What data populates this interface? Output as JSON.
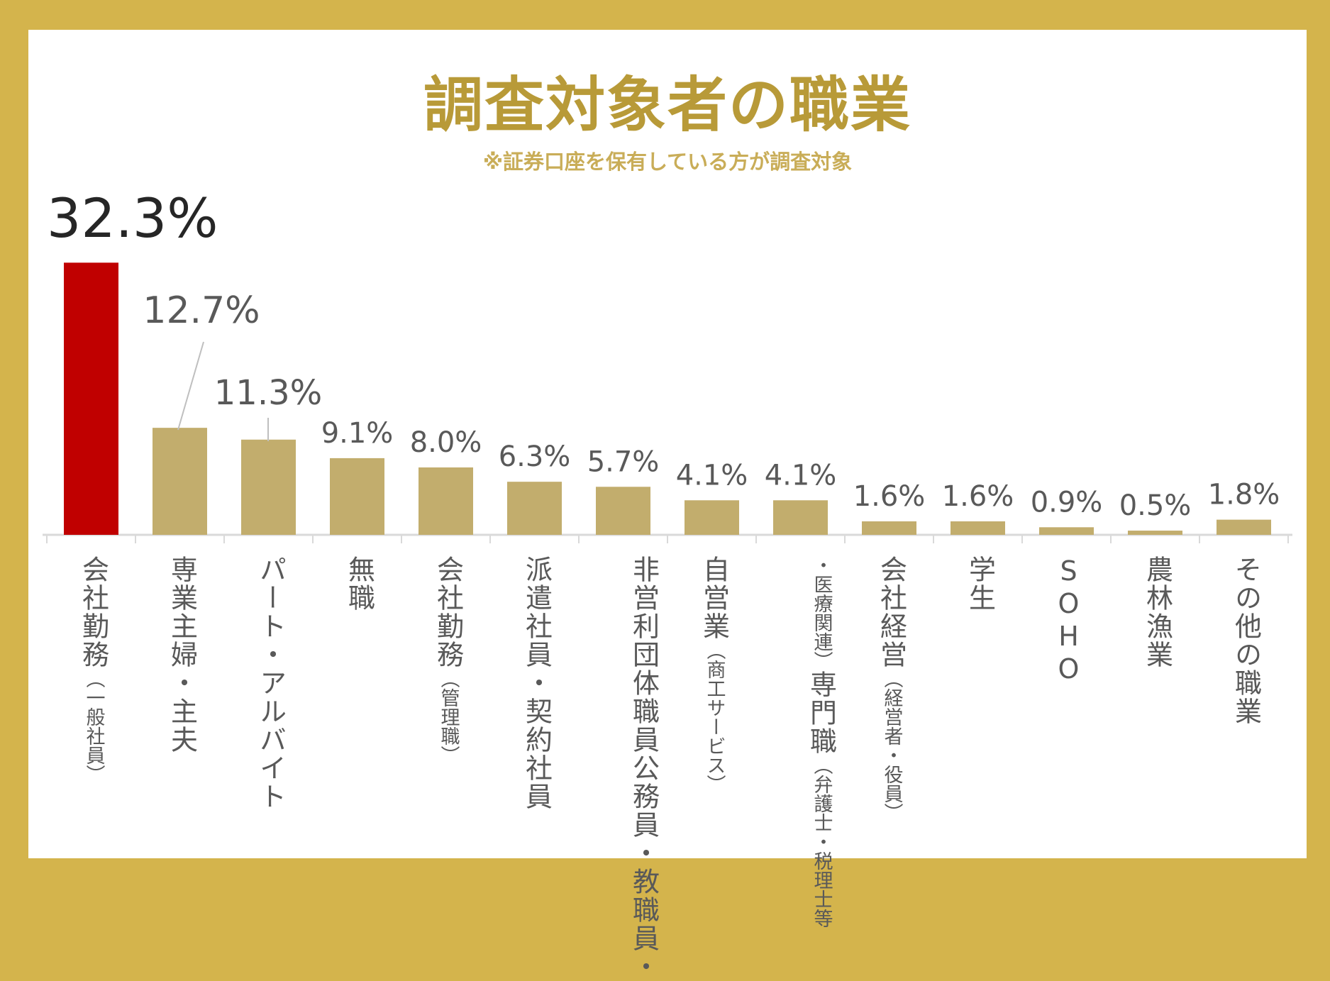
{
  "title": "調査対象者の職業",
  "subtitle": "※証券口座を保有している方が調査対象",
  "colors": {
    "highlight": "#c00000",
    "bar": "#c2ad6d",
    "frame": "#d4b44c"
  },
  "chart_data": {
    "type": "bar",
    "title": "調査対象者の職業",
    "subtitle": "※証券口座を保有している方が調査対象",
    "unit": "%",
    "categories": [
      "会社勤務（一般社員）",
      "専業主婦・主夫",
      "パート・アルバイト",
      "無職",
      "会社勤務（管理職）",
      "派遣社員・契約社員",
      "公務員・教職員・非営利団体職員",
      "自営業（商工サービス）",
      "専門職（弁護士・税理士等・医療関連）",
      "会社経営（経営者・役員）",
      "学生",
      "SOHO",
      "農林漁業",
      "その他の職業"
    ],
    "values": [
      32.3,
      12.7,
      11.3,
      9.1,
      8.0,
      6.3,
      5.7,
      4.1,
      4.1,
      1.6,
      1.6,
      0.9,
      0.5,
      1.8
    ],
    "value_labels": [
      "32.3%",
      "12.7%",
      "11.3%",
      "9.1%",
      "8.0%",
      "6.3%",
      "5.7%",
      "4.1%",
      "4.1%",
      "1.6%",
      "1.6%",
      "0.9%",
      "0.5%",
      "1.8%"
    ],
    "highlight_index": 0,
    "ylim": [
      0,
      33
    ],
    "grid": false,
    "legend": "none",
    "label_lines": [
      [
        {
          "main": "会社勤務",
          "note": "（一般社員）"
        }
      ],
      [
        {
          "main": "専業主婦・主夫",
          "note": ""
        }
      ],
      [
        {
          "main": "パート・アルバイト",
          "note": ""
        }
      ],
      [
        {
          "main": "無職",
          "note": ""
        }
      ],
      [
        {
          "main": "会社勤務",
          "note": "（管理職）"
        }
      ],
      [
        {
          "main": "派遣社員・契約社員",
          "note": ""
        }
      ],
      [
        {
          "main": "非営利団体職員",
          "note": ""
        },
        {
          "main": "公務員・教職員・",
          "note": ""
        }
      ],
      [
        {
          "main": "自営業",
          "note": "（商工サービス）"
        }
      ],
      [
        {
          "main": "",
          "note": "・医療関連）"
        },
        {
          "main": "専門職",
          "note": "（弁護士・税理士等"
        }
      ],
      [
        {
          "main": "会社経営",
          "note": "（経営者・役員）"
        }
      ],
      [
        {
          "main": "学生",
          "note": ""
        }
      ],
      [
        {
          "main": "SOHO",
          "note": ""
        }
      ],
      [
        {
          "main": "農林漁業",
          "note": ""
        }
      ],
      [
        {
          "main": "その他の職業",
          "note": ""
        }
      ]
    ]
  }
}
